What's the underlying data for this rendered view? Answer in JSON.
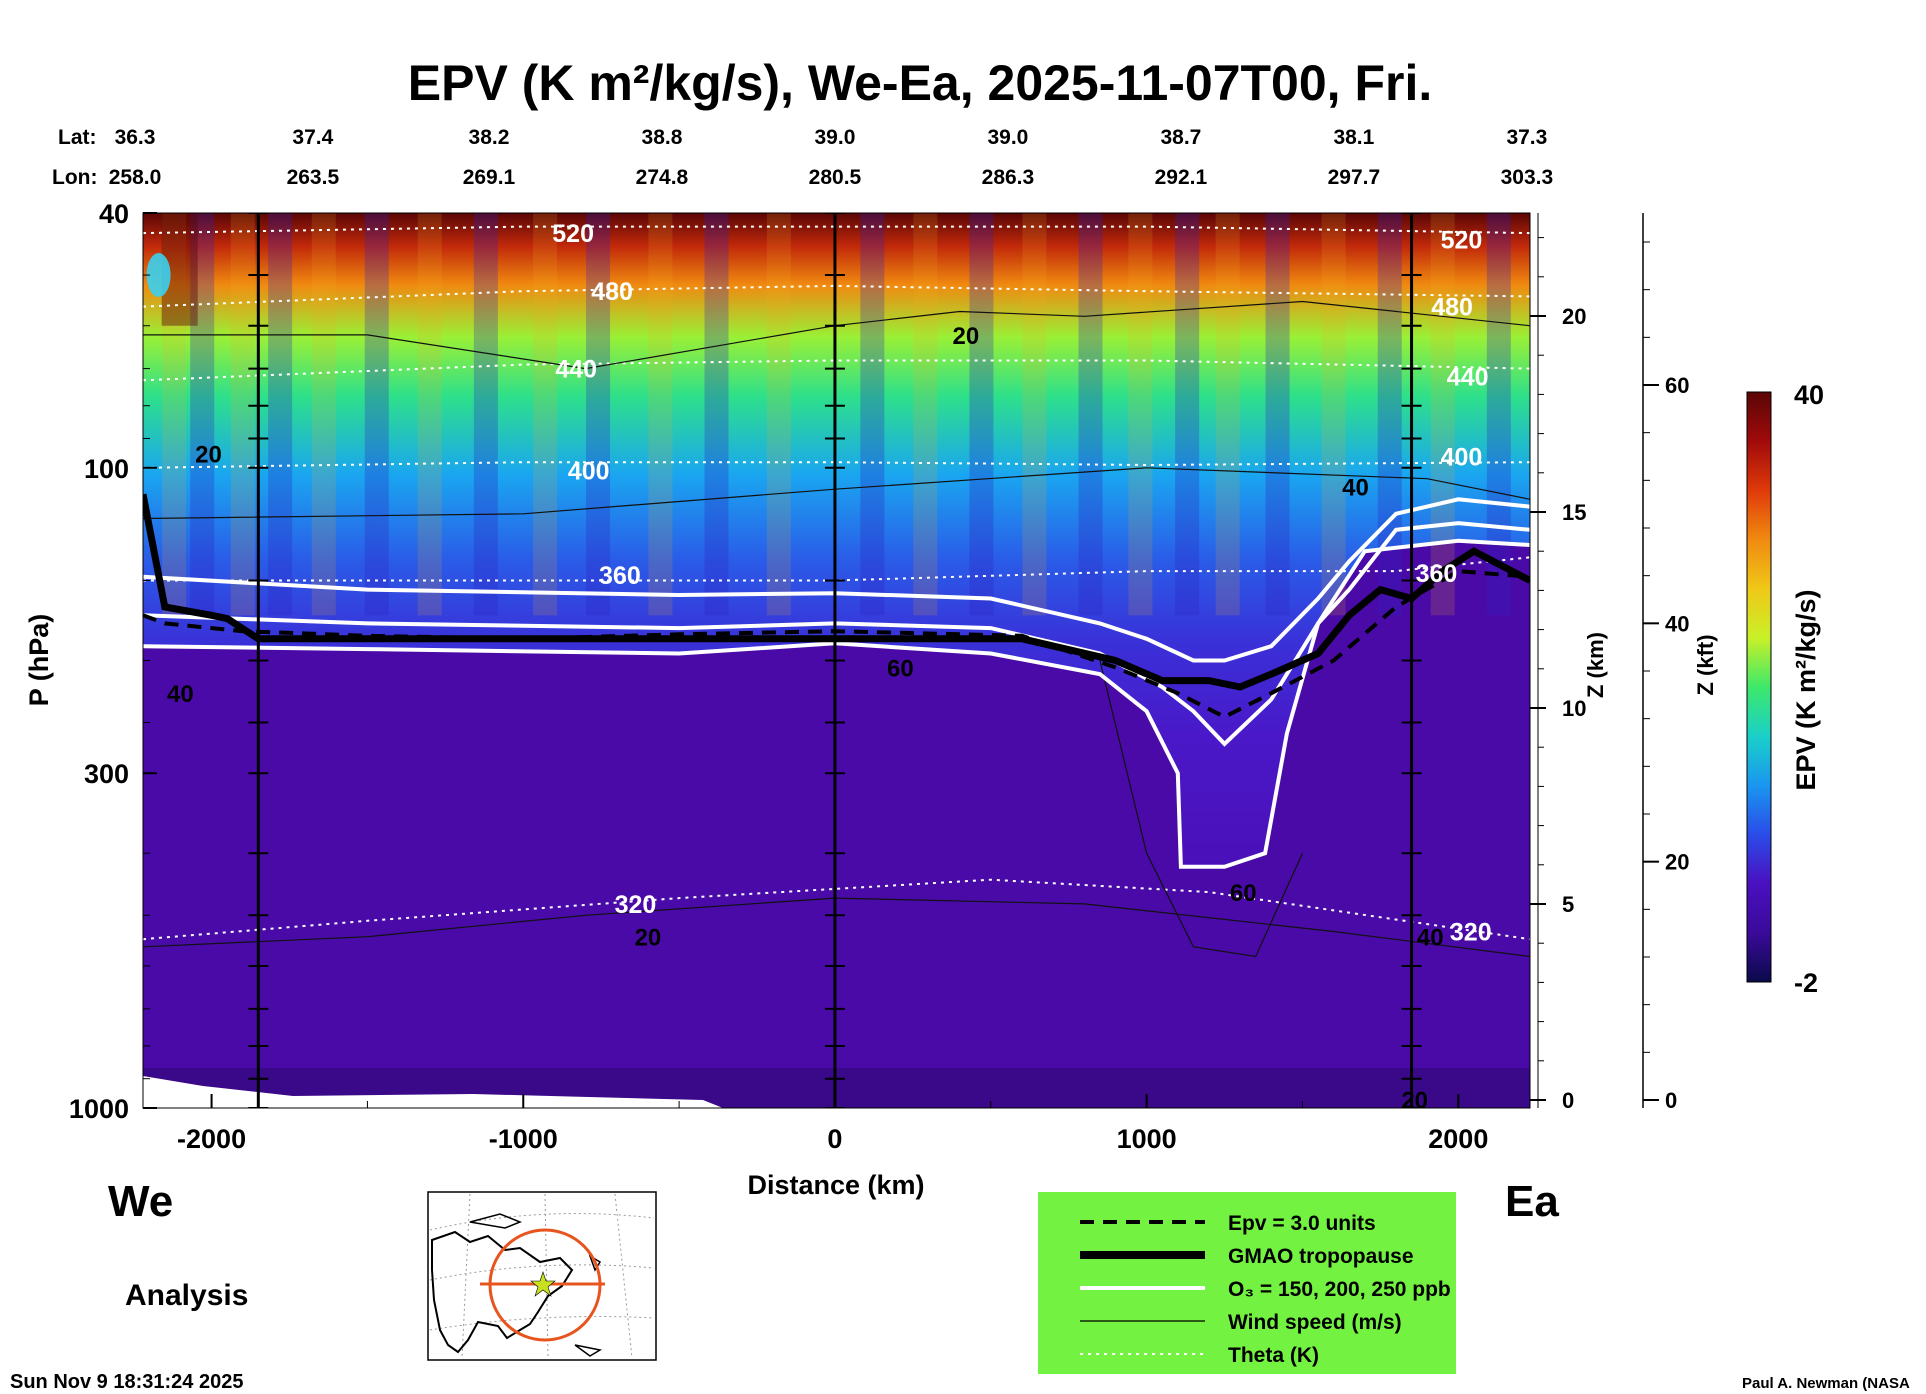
{
  "colors": {
    "panel_background": "#4a0aa8",
    "legend_background": "#73f241",
    "colorbar_stops": [
      "#0a0a4a",
      "#3a0a9a",
      "#4a10c0",
      "#2a4ce8",
      "#1a96f0",
      "#1ad0c8",
      "#3ee86a",
      "#c8f028",
      "#f0c818",
      "#f08a10",
      "#e03a0a",
      "#a00a0a",
      "#5a0606"
    ],
    "map_marker": "#e8541e"
  },
  "chart_data": {
    "type": "heatmap",
    "title": "EPV (K m²/kg/s), We-Ea, 2025-11-07T00, Fri.",
    "xlabel": "Distance (km)",
    "ylabel": "P (hPa)",
    "xlim": [
      -2220,
      2230
    ],
    "ylim": [
      1000,
      40
    ],
    "y_scale": "log",
    "x_ticks": [
      "-2000",
      "-1000",
      "0",
      "1000",
      "2000"
    ],
    "y_ticks": [
      "40",
      "100",
      "300",
      "1000"
    ],
    "right_axis_z_km": {
      "label": "Z (km)",
      "ticks": [
        "20",
        "15",
        "10",
        "5",
        "0"
      ]
    },
    "right_axis_z_kft": {
      "label": "Z (kft)",
      "ticks": [
        "60",
        "40",
        "20",
        "0"
      ]
    },
    "cross_section_lat": {
      "label": "Lat:",
      "values": [
        "36.3",
        "37.4",
        "38.2",
        "38.8",
        "39.0",
        "39.0",
        "38.7",
        "38.1",
        "37.3"
      ]
    },
    "cross_section_lon": {
      "label": "Lon:",
      "values": [
        "258.0",
        "263.5",
        "269.1",
        "274.8",
        "280.5",
        "286.3",
        "292.1",
        "297.7",
        "303.3"
      ]
    },
    "cross_section_distance_km": [
      -2220,
      -1675,
      -1110,
      -555,
      0,
      555,
      1110,
      1665,
      2220
    ],
    "vertical_markers_km": [
      -1850,
      0,
      1850
    ],
    "colorbar": {
      "label": "EPV (K m²/kg/s)",
      "max": "40",
      "min": "-2",
      "vmin": -2,
      "vmax": 40
    },
    "theta_contours": [
      {
        "label": "520",
        "x": [
          -2220,
          -1000,
          0,
          1000,
          2230
        ],
        "p": [
          43,
          42,
          42,
          42,
          43
        ]
      },
      {
        "label": "480",
        "x": [
          -2220,
          -1000,
          0,
          1000,
          2230
        ],
        "p": [
          56,
          53,
          52,
          53,
          54
        ]
      },
      {
        "label": "440",
        "x": [
          -2220,
          -1000,
          0,
          1000,
          2230
        ],
        "p": [
          73,
          69,
          68,
          68,
          70
        ]
      },
      {
        "label": "400",
        "x": [
          -2220,
          -1000,
          0,
          1000,
          2230
        ],
        "p": [
          100,
          98,
          98,
          99,
          98
        ]
      },
      {
        "label": "360",
        "x": [
          -2220,
          -1000,
          0,
          1000,
          1800,
          2230
        ],
        "p": [
          150,
          150,
          150,
          145,
          145,
          138
        ]
      },
      {
        "label": "320",
        "x": [
          -2220,
          -1500,
          -500,
          500,
          1200,
          2230
        ],
        "p": [
          545,
          510,
          470,
          440,
          460,
          545
        ]
      }
    ],
    "wind_speed_contours": [
      {
        "label": "20",
        "x": [
          -2220,
          -1500,
          -800,
          0,
          400,
          800,
          1500,
          2230
        ],
        "p": [
          62,
          62,
          70,
          60,
          57,
          58,
          55,
          60
        ]
      },
      {
        "label": "40",
        "x": [
          -2220,
          -1000,
          0,
          1000,
          1900,
          2230
        ],
        "p": [
          120,
          118,
          108,
          100,
          104,
          112
        ]
      },
      {
        "label": "20",
        "x": [
          -2220,
          -1500,
          -800,
          0,
          800,
          1600,
          2230
        ],
        "p": [
          560,
          540,
          500,
          470,
          480,
          530,
          580
        ]
      },
      {
        "label": "60",
        "x": [
          850,
          1000,
          1150,
          1350,
          1500
        ],
        "p": [
          200,
          400,
          560,
          580,
          400
        ]
      }
    ],
    "gmao_tropopause": {
      "x": [
        -2220,
        -2150,
        -2000,
        -1950,
        -1850,
        -1000,
        -500,
        0,
        600,
        900,
        1050,
        1200,
        1300,
        1400,
        1550,
        1650,
        1750,
        1850,
        1950,
        2050,
        2230
      ],
      "p": [
        110,
        165,
        170,
        172,
        185,
        185,
        185,
        185,
        185,
        200,
        215,
        215,
        220,
        210,
        195,
        170,
        155,
        160,
        145,
        135,
        150
      ]
    },
    "epv_3_units": {
      "x": [
        -2220,
        -2150,
        -1900,
        -1500,
        -1000,
        -500,
        0,
        600,
        900,
        1100,
        1250,
        1400,
        1600,
        1800,
        2000,
        2230
      ],
      "p": [
        170,
        175,
        180,
        183,
        185,
        182,
        180,
        183,
        205,
        225,
        245,
        225,
        200,
        165,
        145,
        148
      ]
    },
    "ozone_contours": [
      {
        "label": "150 ppb",
        "x": [
          -2220,
          -1500,
          -500,
          0,
          500,
          850,
          1000,
          1150,
          1250,
          1400,
          1550,
          1650,
          1800,
          2000,
          2230
        ],
        "p": [
          148,
          155,
          158,
          157,
          160,
          175,
          185,
          200,
          200,
          190,
          160,
          140,
          118,
          112,
          115
        ]
      },
      {
        "label": "200 ppb",
        "x": [
          -2220,
          -1500,
          -500,
          0,
          500,
          850,
          1050,
          1150,
          1250,
          1400,
          1550,
          1650,
          1800,
          2000,
          2230
        ],
        "p": [
          170,
          175,
          178,
          175,
          178,
          195,
          220,
          240,
          270,
          230,
          175,
          155,
          125,
          122,
          125
        ]
      },
      {
        "label": "250 ppb",
        "x": [
          -2220,
          -1500,
          -500,
          0,
          500,
          850,
          1000,
          1100,
          1110,
          1250,
          1380,
          1450,
          1550,
          1700,
          2000,
          2230
        ],
        "p": [
          190,
          192,
          195,
          188,
          195,
          210,
          240,
          300,
          420,
          420,
          400,
          260,
          175,
          135,
          130,
          132
        ]
      }
    ],
    "contour_labels": {
      "theta": [
        {
          "text": "520",
          "x": -840,
          "p": 43
        },
        {
          "text": "520",
          "x": 2010,
          "p": 44
        },
        {
          "text": "480",
          "x": -715,
          "p": 53
        },
        {
          "text": "480",
          "x": 1980,
          "p": 56
        },
        {
          "text": "440",
          "x": -830,
          "p": 70
        },
        {
          "text": "440",
          "x": 2030,
          "p": 72
        },
        {
          "text": "400",
          "x": -790,
          "p": 101
        },
        {
          "text": "400",
          "x": 2010,
          "p": 96
        },
        {
          "text": "360",
          "x": -690,
          "p": 147
        },
        {
          "text": "360",
          "x": 1930,
          "p": 146
        },
        {
          "text": "320",
          "x": -640,
          "p": 480
        },
        {
          "text": "320",
          "x": 2040,
          "p": 530
        }
      ],
      "wind": [
        {
          "text": "20",
          "x": 420,
          "p": 62
        },
        {
          "text": "20",
          "x": -2010,
          "p": 95
        },
        {
          "text": "40",
          "x": 1670,
          "p": 107
        },
        {
          "text": "40",
          "x": -2100,
          "p": 225
        },
        {
          "text": "60",
          "x": 210,
          "p": 205
        },
        {
          "text": "20",
          "x": -600,
          "p": 540
        },
        {
          "text": "60",
          "x": 1310,
          "p": 460
        },
        {
          "text": "40",
          "x": 1910,
          "p": 540
        },
        {
          "text": "20",
          "x": 1860,
          "p": 970
        }
      ]
    }
  },
  "labels": {
    "west": "We",
    "east": "Ea",
    "analysis": "Analysis",
    "timestamp": "Sun Nov  9 18:31:24 2025",
    "credit": "Paul A. Newman (NASA"
  },
  "legend": {
    "items": [
      {
        "style": "dashed",
        "label": "Epv = 3.0 units"
      },
      {
        "style": "thick",
        "label": "GMAO tropopause"
      },
      {
        "style": "white",
        "label": "O₃ = 150, 200, 250 ppb"
      },
      {
        "style": "thin",
        "label": "Wind speed (m/s)"
      },
      {
        "style": "dotted",
        "label": "Theta (K)"
      }
    ]
  }
}
